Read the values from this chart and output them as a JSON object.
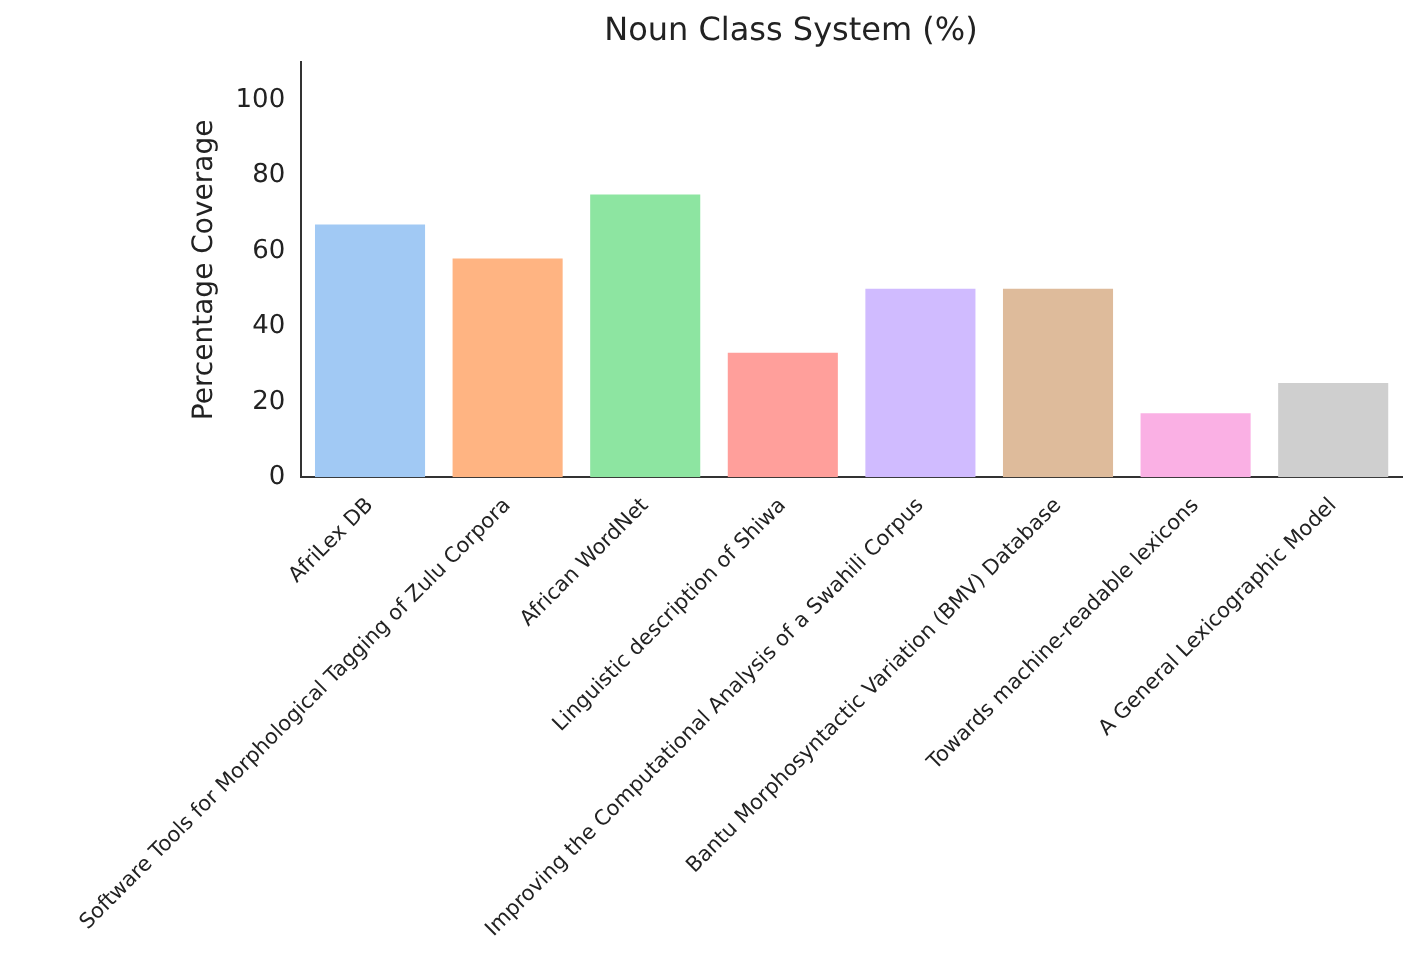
{
  "chart_data": {
    "type": "bar",
    "title": "Noun Class System (%)",
    "ylabel": "Percentage Coverage",
    "categories": [
      "AfriLex DB",
      "Software Tools for Morphological Tagging of Zulu Corpora",
      "African WordNet",
      "Linguistic description of Shiwa",
      "Improving the Computational Analysis of a Swahili Corpus",
      "Bantu Morphosyntactic Variation (BMV) Database",
      "Towards machine-readable lexicons",
      "A General Lexicographic Model"
    ],
    "values": [
      67,
      58,
      75,
      33,
      50,
      50,
      17,
      25
    ],
    "colors": [
      "#a1c9f4",
      "#ffb482",
      "#8de5a1",
      "#ff9f9b",
      "#d0bbff",
      "#debb9b",
      "#fab0e4",
      "#cfcfcf"
    ],
    "ylim": [
      0,
      110
    ],
    "yticks": [
      0,
      20,
      40,
      60,
      80,
      100
    ],
    "grid": false,
    "legend": false
  }
}
